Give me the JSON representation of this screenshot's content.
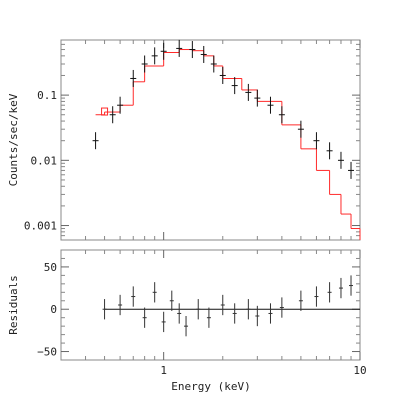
{
  "chart_data": [
    {
      "type": "scatter",
      "panel": "spectrum",
      "xlabel": "Energy (keV)",
      "ylabel": "Counts/sec/keV",
      "x_scale": "log",
      "y_scale": "log",
      "xlim": [
        0.3,
        10
      ],
      "ylim": [
        0.0006,
        0.7
      ],
      "y_ticks": [
        {
          "value": 0.001,
          "label": "0.001"
        },
        {
          "value": 0.01,
          "label": "0.01"
        },
        {
          "value": 0.1,
          "label": "0.1"
        }
      ],
      "colors": {
        "data": "#111111",
        "model": "#ff2a2a"
      },
      "series": [
        {
          "style": "data-with-errorbars",
          "points": [
            {
              "x": 0.45,
              "y": 0.02
            },
            {
              "x": 0.55,
              "y": 0.05
            },
            {
              "x": 0.6,
              "y": 0.07
            },
            {
              "x": 0.7,
              "y": 0.18
            },
            {
              "x": 0.8,
              "y": 0.3
            },
            {
              "x": 0.9,
              "y": 0.4
            },
            {
              "x": 1.0,
              "y": 0.47
            },
            {
              "x": 1.2,
              "y": 0.52
            },
            {
              "x": 1.4,
              "y": 0.5
            },
            {
              "x": 1.6,
              "y": 0.42
            },
            {
              "x": 1.8,
              "y": 0.3
            },
            {
              "x": 2.0,
              "y": 0.2
            },
            {
              "x": 2.3,
              "y": 0.14
            },
            {
              "x": 2.7,
              "y": 0.11
            },
            {
              "x": 3.0,
              "y": 0.09
            },
            {
              "x": 3.5,
              "y": 0.07
            },
            {
              "x": 4.0,
              "y": 0.05
            },
            {
              "x": 5.0,
              "y": 0.03
            },
            {
              "x": 6.0,
              "y": 0.02
            },
            {
              "x": 7.0,
              "y": 0.014
            },
            {
              "x": 8.0,
              "y": 0.01
            },
            {
              "x": 9.0,
              "y": 0.007
            }
          ]
        },
        {
          "style": "model-step",
          "points": [
            {
              "x": 0.45,
              "y": 0.05
            },
            {
              "x": 0.5,
              "y": 0.055
            },
            {
              "x": 0.6,
              "y": 0.07
            },
            {
              "x": 0.7,
              "y": 0.16
            },
            {
              "x": 0.8,
              "y": 0.28
            },
            {
              "x": 1.0,
              "y": 0.45
            },
            {
              "x": 1.2,
              "y": 0.5
            },
            {
              "x": 1.4,
              "y": 0.48
            },
            {
              "x": 1.6,
              "y": 0.4
            },
            {
              "x": 1.8,
              "y": 0.28
            },
            {
              "x": 2.0,
              "y": 0.18
            },
            {
              "x": 2.5,
              "y": 0.12
            },
            {
              "x": 3.0,
              "y": 0.08
            },
            {
              "x": 4.0,
              "y": 0.035
            },
            {
              "x": 5.0,
              "y": 0.015
            },
            {
              "x": 6.0,
              "y": 0.007
            },
            {
              "x": 7.0,
              "y": 0.003
            },
            {
              "x": 8.0,
              "y": 0.0015
            },
            {
              "x": 9.0,
              "y": 0.0009
            },
            {
              "x": 10.0,
              "y": 0.0006
            }
          ]
        }
      ]
    },
    {
      "type": "scatter",
      "panel": "residuals",
      "xlabel": "Energy (keV)",
      "ylabel": "Residuals",
      "x_scale": "log",
      "xlim": [
        0.3,
        10
      ],
      "ylim": [
        -60,
        70
      ],
      "x_ticks": [
        {
          "value": 1,
          "label": "1"
        },
        {
          "value": 10,
          "label": "10"
        }
      ],
      "y_ticks": [
        {
          "value": -50,
          "label": "−50"
        },
        {
          "value": 0,
          "label": "0"
        },
        {
          "value": 50,
          "label": "50"
        }
      ],
      "zero_line": true,
      "series": [
        {
          "style": "residual-bars",
          "points": [
            {
              "x": 0.5,
              "y": 0
            },
            {
              "x": 0.6,
              "y": 5
            },
            {
              "x": 0.7,
              "y": 15
            },
            {
              "x": 0.8,
              "y": -10
            },
            {
              "x": 0.9,
              "y": 20
            },
            {
              "x": 1.0,
              "y": -15
            },
            {
              "x": 1.1,
              "y": 10
            },
            {
              "x": 1.2,
              "y": -5
            },
            {
              "x": 1.3,
              "y": -20
            },
            {
              "x": 1.5,
              "y": 0
            },
            {
              "x": 1.7,
              "y": -10
            },
            {
              "x": 2.0,
              "y": 5
            },
            {
              "x": 2.3,
              "y": -5
            },
            {
              "x": 2.7,
              "y": 0
            },
            {
              "x": 3.0,
              "y": -8
            },
            {
              "x": 3.5,
              "y": -5
            },
            {
              "x": 4.0,
              "y": 2
            },
            {
              "x": 5.0,
              "y": 10
            },
            {
              "x": 6.0,
              "y": 15
            },
            {
              "x": 7.0,
              "y": 20
            },
            {
              "x": 8.0,
              "y": 25
            },
            {
              "x": 9.0,
              "y": 28
            }
          ]
        }
      ]
    }
  ]
}
